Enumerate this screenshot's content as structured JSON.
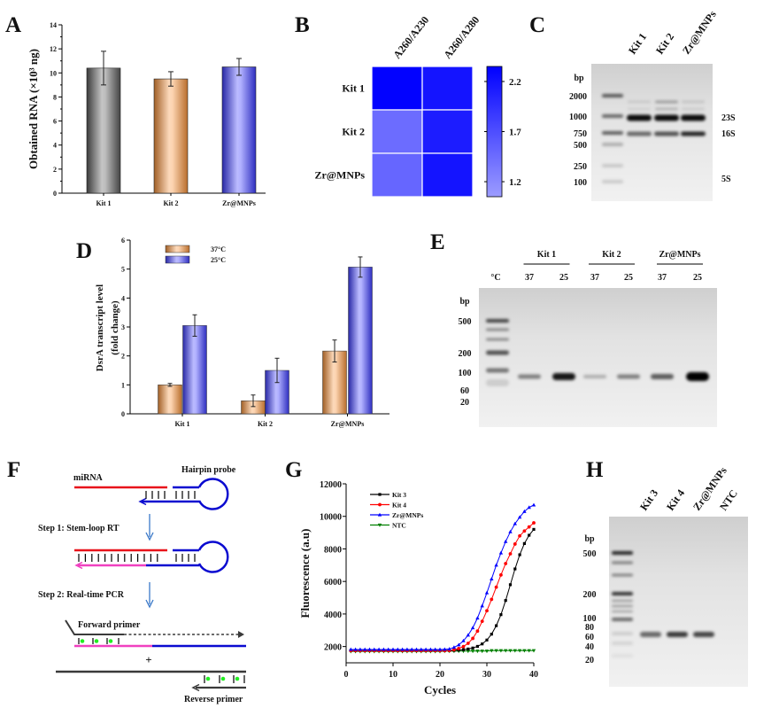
{
  "panel_labels": {
    "A": "A",
    "B": "B",
    "C": "C",
    "D": "D",
    "E": "E",
    "F": "F",
    "G": "G",
    "H": "H"
  },
  "chart_data": [
    {
      "panel": "A",
      "type": "bar",
      "categories": [
        "Kit 1",
        "Kit 2",
        "Zr@MNPs"
      ],
      "values": [
        10.4,
        9.5,
        10.5
      ],
      "errors": [
        1.4,
        0.6,
        0.7
      ],
      "xlabel": "",
      "ylabel": "Obtained RNA (×10³ ng)",
      "ylim": [
        0,
        14
      ],
      "yticks": [
        "0",
        "2",
        "4",
        "6",
        "8",
        "10",
        "12",
        "14"
      ],
      "colors": [
        "#5a5a5a",
        "#f7923a",
        "#3d3dff"
      ],
      "grid": false
    },
    {
      "panel": "B",
      "type": "heatmap",
      "rows": [
        "Kit 1",
        "Kit 2",
        "Zr@MNPs"
      ],
      "columns": [
        "A260/A230",
        "A260/A280"
      ],
      "values": [
        [
          2.33,
          2.18
        ],
        [
          1.45,
          2.12
        ],
        [
          1.5,
          2.18
        ]
      ],
      "colorbar": {
        "ticks": [
          "1.2",
          "1.7",
          "2.2"
        ],
        "range": [
          1.05,
          2.35
        ],
        "low_color": "#9c9cff",
        "high_color": "#0000ff"
      }
    },
    {
      "panel": "D",
      "type": "bar",
      "categories": [
        "Kit 1",
        "Kit 2",
        "Zr@MNPs"
      ],
      "series": [
        {
          "name": "37°C",
          "values": [
            1.0,
            0.45,
            2.17
          ],
          "errors": [
            0.05,
            0.2,
            0.38
          ],
          "color": "#f7923a"
        },
        {
          "name": "25°C",
          "values": [
            3.05,
            1.5,
            5.07
          ],
          "errors": [
            0.37,
            0.42,
            0.35
          ],
          "color": "#3d3dff"
        }
      ],
      "ylabel_lines": [
        "DsrA transcript level",
        "(fold change)"
      ],
      "ylim": [
        0,
        6
      ],
      "yticks": [
        "0",
        "1",
        "2",
        "3",
        "4",
        "5",
        "6"
      ],
      "legend": "top-left",
      "grid": false
    },
    {
      "panel": "G",
      "type": "line",
      "x": [
        1,
        2,
        3,
        4,
        5,
        6,
        7,
        8,
        9,
        10,
        11,
        12,
        13,
        14,
        15,
        16,
        17,
        18,
        19,
        20,
        21,
        22,
        23,
        24,
        25,
        26,
        27,
        28,
        29,
        30,
        31,
        32,
        33,
        34,
        35,
        36,
        37,
        38,
        39,
        40
      ],
      "series": [
        {
          "name": "Kit 3",
          "color": "#000000",
          "marker": "square",
          "values": [
            1750,
            1750,
            1750,
            1750,
            1750,
            1750,
            1750,
            1750,
            1750,
            1750,
            1750,
            1750,
            1750,
            1750,
            1750,
            1750,
            1750,
            1750,
            1750,
            1750,
            1750,
            1750,
            1760,
            1780,
            1810,
            1850,
            1910,
            2010,
            2160,
            2400,
            2760,
            3280,
            3960,
            4830,
            5800,
            6770,
            7640,
            8330,
            8840,
            9200
          ]
        },
        {
          "name": "Kit 4",
          "color": "#ff0000",
          "marker": "circle",
          "values": [
            1750,
            1750,
            1750,
            1750,
            1750,
            1750,
            1750,
            1750,
            1750,
            1750,
            1750,
            1750,
            1750,
            1750,
            1750,
            1750,
            1750,
            1750,
            1750,
            1750,
            1750,
            1760,
            1800,
            1880,
            2000,
            2200,
            2500,
            2950,
            3550,
            4200,
            4900,
            5650,
            6400,
            7100,
            7700,
            8300,
            8800,
            9100,
            9350,
            9600
          ]
        },
        {
          "name": "Zr@MNPs",
          "color": "#0000ff",
          "marker": "triangle-up",
          "values": [
            1820,
            1820,
            1820,
            1820,
            1820,
            1820,
            1820,
            1820,
            1820,
            1820,
            1820,
            1820,
            1820,
            1820,
            1820,
            1820,
            1820,
            1820,
            1820,
            1820,
            1830,
            1850,
            1950,
            2100,
            2350,
            2700,
            3150,
            3750,
            4500,
            5300,
            6150,
            7000,
            7750,
            8450,
            9050,
            9550,
            9950,
            10300,
            10550,
            10700
          ]
        },
        {
          "name": "NTC",
          "color": "#008000",
          "marker": "triangle-down",
          "values": [
            1700,
            1700,
            1700,
            1700,
            1700,
            1700,
            1700,
            1700,
            1700,
            1700,
            1700,
            1700,
            1700,
            1700,
            1700,
            1700,
            1700,
            1700,
            1700,
            1700,
            1720,
            1720,
            1720,
            1720,
            1720,
            1720,
            1720,
            1720,
            1720,
            1720,
            1750,
            1750,
            1750,
            1750,
            1750,
            1750,
            1750,
            1750,
            1750,
            1750
          ]
        }
      ],
      "xlabel": "Cycles",
      "ylabel": "Fluorescence (a.u)",
      "xlim": [
        0,
        40
      ],
      "ylim": [
        1000,
        12000
      ],
      "xticks": [
        "0",
        "10",
        "20",
        "30",
        "40"
      ],
      "yticks": [
        "2000",
        "4000",
        "6000",
        "8000",
        "10000",
        "12000"
      ],
      "legend": "top-left",
      "grid": false
    }
  ],
  "gels": {
    "C": {
      "lanes": [
        "Kit 1",
        "Kit 2",
        "Zr@MNPs"
      ],
      "unit": "bp",
      "ladder": [
        "2000",
        "1000",
        "750",
        "500",
        "250",
        "100"
      ],
      "bands": [
        "23S",
        "16S",
        "5S"
      ]
    },
    "E": {
      "unit_temp": "°C",
      "unit": "bp",
      "groups": [
        "Kit 1",
        "Kit 2",
        "Zr@MNPs"
      ],
      "lanes": [
        "37",
        "25",
        "37",
        "25",
        "37",
        "25"
      ],
      "ladder": [
        "500",
        "200",
        "100",
        "60",
        "20"
      ]
    },
    "H": {
      "lanes": [
        "Kit 3",
        "Kit 4",
        "Zr@MNPs",
        "NTC"
      ],
      "unit": "bp",
      "ladder": [
        "500",
        "200",
        "100",
        "80",
        "60",
        "40",
        "20"
      ]
    }
  },
  "diagram_F": {
    "mirna": "miRNA",
    "hairpin": "Hairpin probe",
    "step1": "Step 1:  Stem-loop RT",
    "step2": "Step 2:  Real-time PCR",
    "forward": "Forward primer",
    "plus": "+",
    "reverse": "Reverse primer",
    "colors": {
      "mirna": "#e8131b",
      "probe": "#0a0ad0",
      "cdna": "#f040c0",
      "primer": "#3a3a3a",
      "probe_dye": "#22ee22",
      "arrow": "#3a78c8"
    }
  }
}
